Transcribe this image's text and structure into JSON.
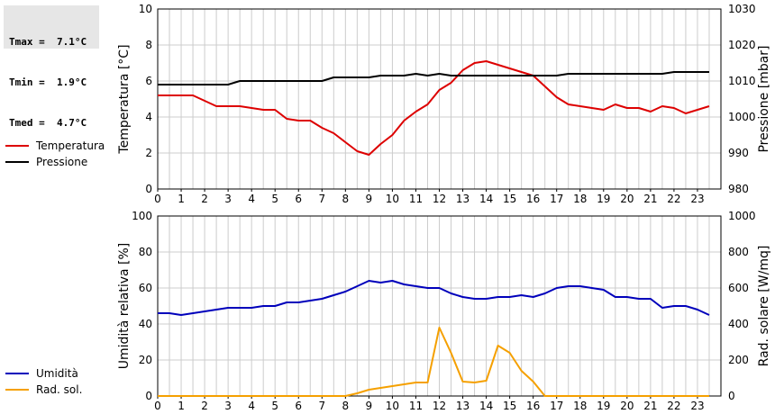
{
  "stats": {
    "tmax": "Tmax =  7.1°C",
    "tmin": "Tmin =  1.9°C",
    "tmed": "Tmed =  4.7°C"
  },
  "colors": {
    "temperature": "#dd0000",
    "pressure": "#000000",
    "humidity": "#0000bb",
    "radiation": "#f5a000",
    "grid": "#cccccc"
  },
  "chart_data": [
    {
      "type": "line",
      "xlim": [
        0,
        24
      ],
      "xticks": [
        "0",
        "1",
        "2",
        "3",
        "4",
        "5",
        "6",
        "7",
        "8",
        "9",
        "10",
        "11",
        "12",
        "13",
        "14",
        "15",
        "16",
        "17",
        "18",
        "19",
        "20",
        "21",
        "22",
        "23"
      ],
      "grid": true,
      "ylabel": "Temperatura [°C]",
      "ylim": [
        0,
        10
      ],
      "yticks": [
        0,
        2,
        4,
        6,
        8,
        10
      ],
      "y2label": "Pressione [mbar]",
      "y2lim": [
        980,
        1030
      ],
      "y2ticks": [
        980,
        990,
        1000,
        1010,
        1020,
        1030
      ],
      "series": [
        {
          "name": "Temperatura",
          "axis": "left",
          "x": [
            0,
            0.5,
            1,
            1.5,
            2,
            2.5,
            3,
            3.5,
            4,
            4.5,
            5,
            5.5,
            6,
            6.5,
            7,
            7.5,
            8,
            8.5,
            9,
            9.5,
            10,
            10.5,
            11,
            11.5,
            12,
            12.5,
            13,
            13.5,
            14,
            14.5,
            15,
            15.5,
            16,
            16.5,
            17,
            17.5,
            18,
            18.5,
            19,
            19.5,
            20,
            20.5,
            21,
            21.5,
            22,
            22.5,
            23,
            23.5
          ],
          "values": [
            5.2,
            5.2,
            5.2,
            5.2,
            4.9,
            4.6,
            4.6,
            4.6,
            4.5,
            4.4,
            4.4,
            3.9,
            3.8,
            3.8,
            3.4,
            3.1,
            2.6,
            2.1,
            1.9,
            2.5,
            3.0,
            3.8,
            4.3,
            4.7,
            5.5,
            5.9,
            6.6,
            7.0,
            7.1,
            6.9,
            6.7,
            6.5,
            6.3,
            5.7,
            5.1,
            4.7,
            4.6,
            4.5,
            4.4,
            4.7,
            4.5,
            4.5,
            4.3,
            4.6,
            4.5,
            4.2,
            4.4,
            4.6
          ]
        },
        {
          "name": "Pressione",
          "axis": "right",
          "x": [
            0,
            0.5,
            1,
            1.5,
            2,
            2.5,
            3,
            3.5,
            4,
            4.5,
            5,
            5.5,
            6,
            6.5,
            7,
            7.5,
            8,
            8.5,
            9,
            9.5,
            10,
            10.5,
            11,
            11.5,
            12,
            12.5,
            13,
            13.5,
            14,
            14.5,
            15,
            15.5,
            16,
            16.5,
            17,
            17.5,
            18,
            18.5,
            19,
            19.5,
            20,
            20.5,
            21,
            21.5,
            22,
            22.5,
            23,
            23.5
          ],
          "values": [
            1009,
            1009,
            1009,
            1009,
            1009,
            1009,
            1009,
            1010,
            1010,
            1010,
            1010,
            1010,
            1010,
            1010,
            1010,
            1011,
            1011,
            1011,
            1011,
            1011.5,
            1011.5,
            1011.5,
            1012,
            1011.5,
            1012,
            1011.5,
            1011.5,
            1011.5,
            1011.5,
            1011.5,
            1011.5,
            1011.5,
            1011.5,
            1011.5,
            1011.5,
            1012,
            1012,
            1012,
            1012,
            1012,
            1012,
            1012,
            1012,
            1012,
            1012.5,
            1012.5,
            1012.5,
            1012.5
          ]
        }
      ]
    },
    {
      "type": "line",
      "xlim": [
        0,
        24
      ],
      "xticks": [
        "0",
        "1",
        "2",
        "3",
        "4",
        "5",
        "6",
        "7",
        "8",
        "9",
        "10",
        "11",
        "12",
        "13",
        "14",
        "15",
        "16",
        "17",
        "18",
        "19",
        "20",
        "21",
        "22",
        "23"
      ],
      "grid": true,
      "ylabel": "Umidità relativa [%]",
      "ylim": [
        0,
        100
      ],
      "yticks": [
        0,
        20,
        40,
        60,
        80,
        100
      ],
      "y2label": "Rad. solare [W/mq]",
      "y2lim": [
        0,
        1000
      ],
      "y2ticks": [
        0,
        200,
        400,
        600,
        800,
        1000
      ],
      "series": [
        {
          "name": "Umidità",
          "axis": "left",
          "x": [
            0,
            0.5,
            1,
            1.5,
            2,
            2.5,
            3,
            3.5,
            4,
            4.5,
            5,
            5.5,
            6,
            6.5,
            7,
            7.5,
            8,
            8.5,
            9,
            9.5,
            10,
            10.5,
            11,
            11.5,
            12,
            12.5,
            13,
            13.5,
            14,
            14.5,
            15,
            15.5,
            16,
            16.5,
            17,
            17.5,
            18,
            18.5,
            19,
            19.5,
            20,
            20.5,
            21,
            21.5,
            22,
            22.5,
            23,
            23.5
          ],
          "values": [
            46,
            46,
            45,
            46,
            47,
            48,
            49,
            49,
            49,
            50,
            50,
            52,
            52,
            53,
            54,
            56,
            58,
            61,
            64,
            63,
            64,
            62,
            61,
            60,
            60,
            57,
            55,
            54,
            54,
            55,
            55,
            56,
            55,
            57,
            60,
            61,
            61,
            60,
            59,
            55,
            55,
            54,
            54,
            49,
            50,
            50,
            48,
            45
          ]
        },
        {
          "name": "Rad. sol.",
          "axis": "right",
          "x": [
            0,
            1,
            2,
            3,
            4,
            5,
            6,
            7,
            8,
            8.5,
            9,
            9.5,
            10,
            10.5,
            11,
            11.5,
            12,
            12.5,
            13,
            13.5,
            14,
            14.5,
            15,
            15.5,
            16,
            16.5,
            17,
            18,
            19,
            20,
            21,
            22,
            23,
            23.5
          ],
          "values": [
            0,
            0,
            0,
            0,
            0,
            0,
            0,
            0,
            0,
            15,
            35,
            45,
            55,
            65,
            75,
            75,
            380,
            240,
            80,
            75,
            85,
            280,
            240,
            140,
            80,
            0,
            0,
            0,
            0,
            0,
            0,
            0,
            0,
            0
          ]
        }
      ]
    }
  ],
  "legend": {
    "top": [
      {
        "label": "Temperatura",
        "color": "#dd0000"
      },
      {
        "label": "Pressione",
        "color": "#000000"
      }
    ],
    "bottom": [
      {
        "label": "Umidità",
        "color": "#0000bb"
      },
      {
        "label": "Rad. sol.",
        "color": "#f5a000"
      }
    ]
  }
}
